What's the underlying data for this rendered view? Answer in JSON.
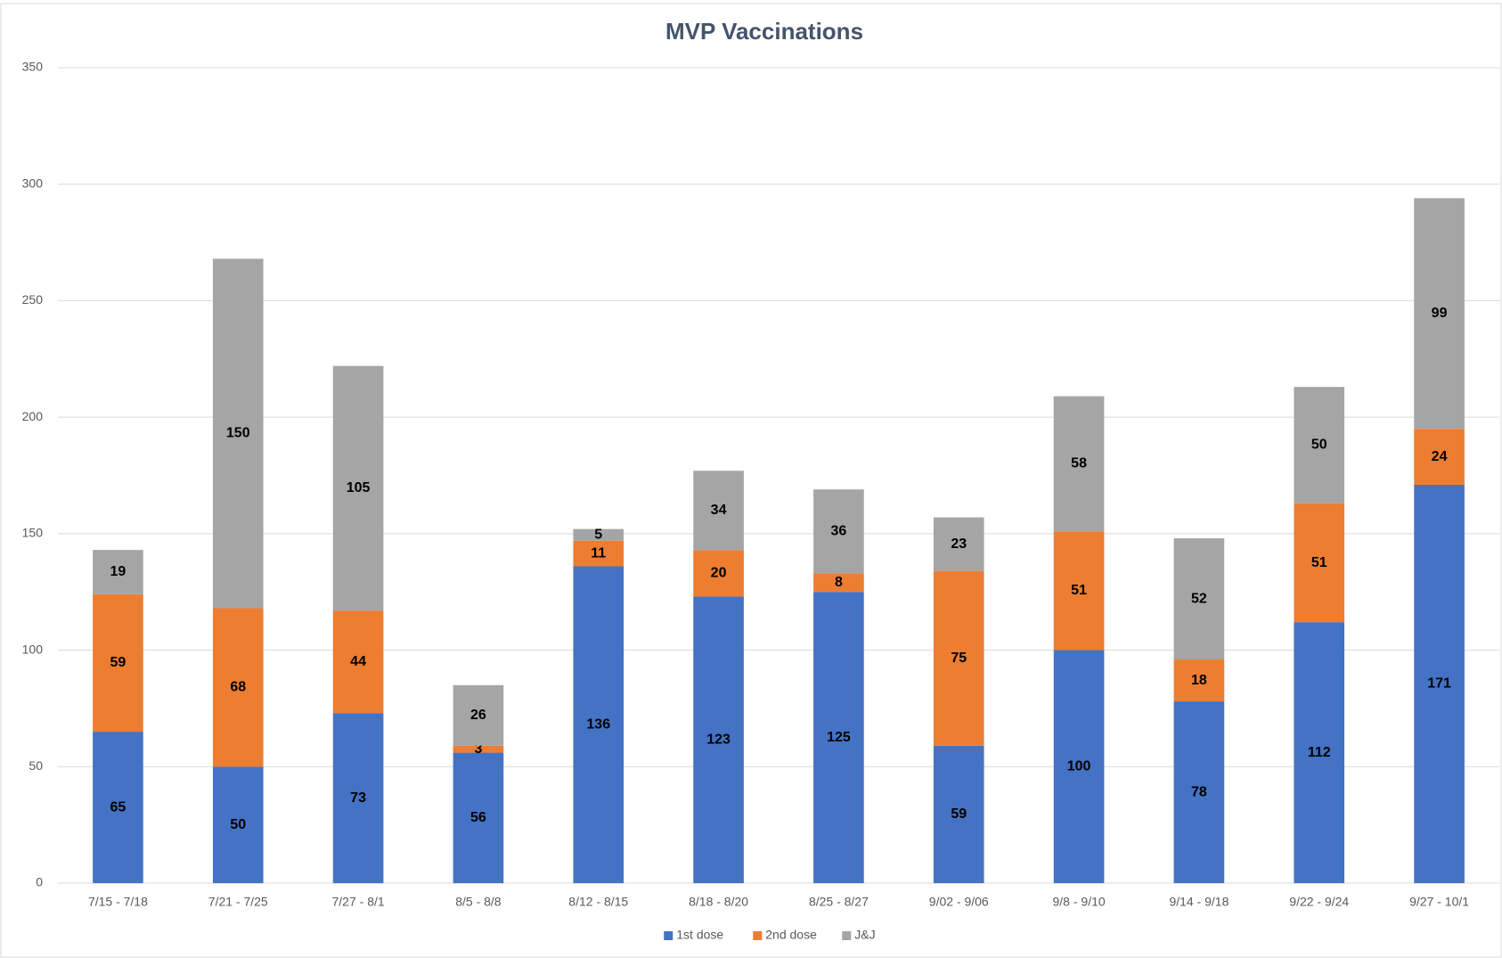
{
  "chart_data": {
    "type": "stacked_bar",
    "title": "MVP Vaccinations",
    "categories": [
      "7/15 - 7/18",
      "7/21 - 7/25",
      "7/27 - 8/1",
      "8/5 - 8/8",
      "8/12 - 8/15",
      "8/18 - 8/20",
      "8/25 - 8/27",
      "9/02 - 9/06",
      "9/8 - 9/10",
      "9/14 - 9/18",
      "9/22 - 9/24",
      "9/27 - 10/1"
    ],
    "series": [
      {
        "name": "1st dose",
        "color": "#4472c4",
        "values": [
          65,
          50,
          73,
          56,
          136,
          123,
          125,
          59,
          100,
          78,
          112,
          171
        ]
      },
      {
        "name": "2nd dose",
        "color": "#ed7d31",
        "values": [
          59,
          68,
          44,
          3,
          11,
          20,
          8,
          75,
          51,
          18,
          51,
          24
        ]
      },
      {
        "name": "J&J",
        "color": "#a5a5a5",
        "values": [
          19,
          150,
          105,
          26,
          5,
          34,
          36,
          23,
          58,
          52,
          50,
          99
        ]
      }
    ],
    "ylim": [
      0,
      350
    ],
    "yticks": [
      0,
      50,
      100,
      150,
      200,
      250,
      300,
      350
    ],
    "grid": true,
    "legend": "bottom"
  }
}
